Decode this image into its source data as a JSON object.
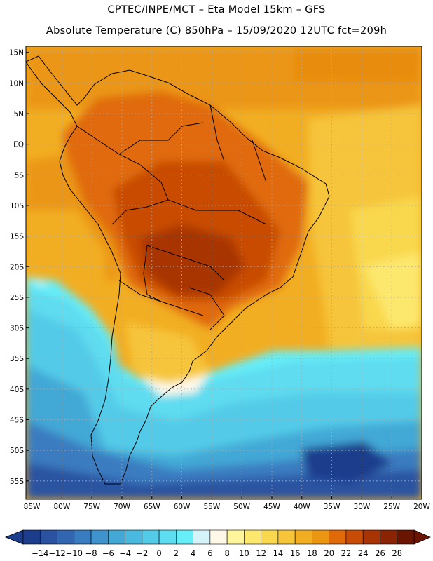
{
  "header": {
    "line1": "CPTEC/INPE/MCT –  Eta Model 15km – GFS",
    "line2": "Absolute Temperature (C) 850hPa – 15/09/2020 12UTC fct=209h"
  },
  "axes": {
    "lat_labels": [
      "15N",
      "10N",
      "5N",
      "EQ",
      "5S",
      "10S",
      "15S",
      "20S",
      "25S",
      "30S",
      "35S",
      "40S",
      "45S",
      "50S",
      "55S"
    ],
    "lat_values": [
      15,
      10,
      5,
      0,
      -5,
      -10,
      -15,
      -20,
      -25,
      -30,
      -35,
      -40,
      -45,
      -50,
      -55
    ],
    "lon_labels": [
      "85W",
      "80W",
      "75W",
      "70W",
      "65W",
      "60W",
      "55W",
      "50W",
      "45W",
      "40W",
      "35W",
      "30W",
      "25W",
      "20W"
    ],
    "lon_values": [
      -85,
      -80,
      -75,
      -70,
      -65,
      -60,
      -55,
      -50,
      -45,
      -40,
      -35,
      -30,
      -25,
      -20
    ],
    "lon_range": [
      -86,
      -20
    ],
    "lat_range": [
      -58,
      16
    ]
  },
  "legend": {
    "tick_labels": [
      "-14",
      "-12",
      "-10",
      "-8",
      "-6",
      "-4",
      "-2",
      "0",
      "2",
      "4",
      "6",
      "8",
      "10",
      "12",
      "14",
      "16",
      "18",
      "20",
      "22",
      "24",
      "26",
      "28"
    ],
    "colors": [
      "#1c3d8c",
      "#2a52a0",
      "#3366b0",
      "#3a7cc0",
      "#3f93cc",
      "#43a8d6",
      "#4ab9df",
      "#53cbe8",
      "#5edcf0",
      "#66eef8",
      "#d4f4fa",
      "#fff8e8",
      "#fff59a",
      "#fde86e",
      "#f9d84e",
      "#f6c53a",
      "#f2ae22",
      "#eb9612",
      "#e06a08",
      "#c84c06",
      "#a83404",
      "#8a2404",
      "#6a1402"
    ],
    "below_color": "#1c3d8c",
    "above_color": "#6a1402"
  }
}
